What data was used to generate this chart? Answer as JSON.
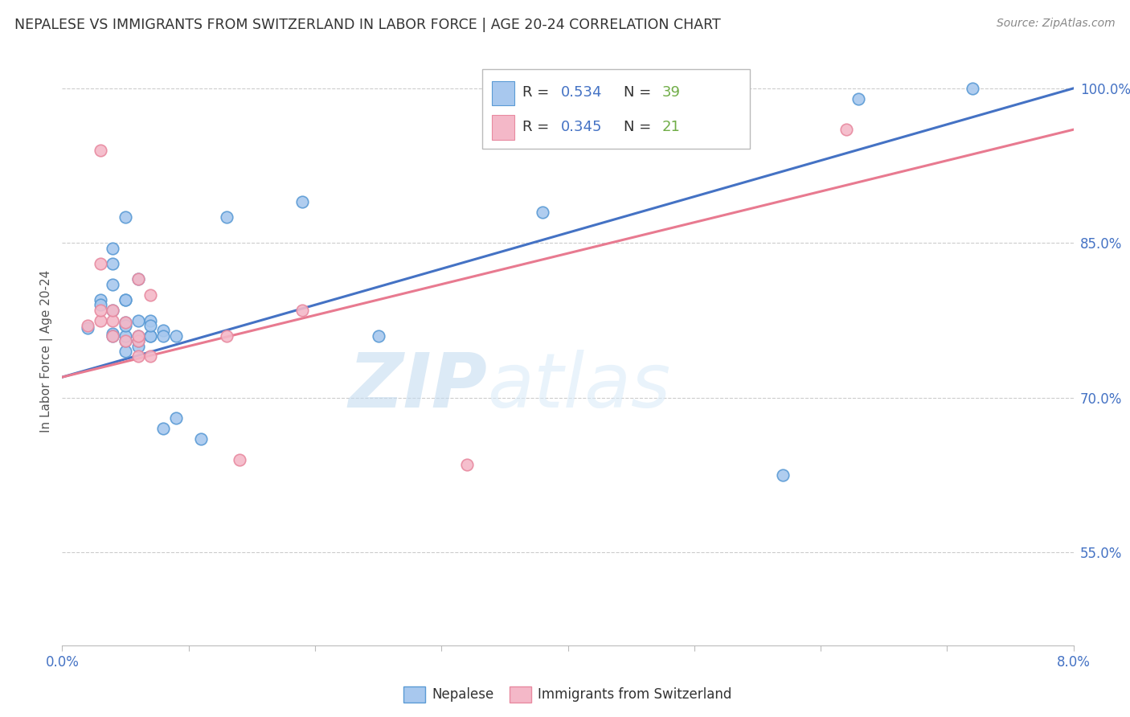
{
  "title": "NEPALESE VS IMMIGRANTS FROM SWITZERLAND IN LABOR FORCE | AGE 20-24 CORRELATION CHART",
  "source": "Source: ZipAtlas.com",
  "ylabel": "In Labor Force | Age 20-24",
  "ytick_labels": [
    "55.0%",
    "70.0%",
    "85.0%",
    "100.0%"
  ],
  "ytick_values": [
    0.55,
    0.7,
    0.85,
    1.0
  ],
  "xlim": [
    0.0,
    0.08
  ],
  "ylim": [
    0.46,
    1.03
  ],
  "watermark_zip": "ZIP",
  "watermark_atlas": "atlas",
  "legend_r1": "R = 0.534",
  "legend_n1": "N = 39",
  "legend_r2": "R = 0.345",
  "legend_n2": "N = 21",
  "legend_label1": "Nepalese",
  "legend_label2": "Immigrants from Switzerland",
  "blue_fill": "#A8C8EE",
  "pink_fill": "#F4B8C8",
  "blue_edge": "#5B9BD5",
  "pink_edge": "#E88AA0",
  "blue_line": "#4472C4",
  "pink_line": "#E87A90",
  "text_blue": "#4472C4",
  "text_green": "#70AD47",
  "grid_color": "#CCCCCC",
  "bg": "#FFFFFF",
  "nepalese_x": [
    0.002,
    0.003,
    0.003,
    0.004,
    0.004,
    0.004,
    0.004,
    0.004,
    0.004,
    0.005,
    0.005,
    0.005,
    0.005,
    0.005,
    0.005,
    0.005,
    0.005,
    0.006,
    0.006,
    0.006,
    0.006,
    0.006,
    0.007,
    0.007,
    0.007,
    0.007,
    0.008,
    0.008,
    0.008,
    0.009,
    0.009,
    0.011,
    0.013,
    0.019,
    0.025,
    0.038,
    0.057,
    0.063,
    0.072
  ],
  "nepalese_y": [
    0.768,
    0.795,
    0.79,
    0.762,
    0.76,
    0.81,
    0.785,
    0.83,
    0.845,
    0.745,
    0.755,
    0.76,
    0.773,
    0.77,
    0.795,
    0.875,
    0.795,
    0.75,
    0.755,
    0.76,
    0.775,
    0.815,
    0.76,
    0.76,
    0.775,
    0.77,
    0.67,
    0.765,
    0.76,
    0.68,
    0.76,
    0.66,
    0.875,
    0.89,
    0.76,
    0.88,
    0.625,
    0.99,
    1.0
  ],
  "swiss_x": [
    0.002,
    0.003,
    0.003,
    0.003,
    0.003,
    0.004,
    0.004,
    0.004,
    0.005,
    0.005,
    0.006,
    0.006,
    0.006,
    0.006,
    0.007,
    0.007,
    0.013,
    0.014,
    0.019,
    0.032,
    0.062
  ],
  "swiss_y": [
    0.77,
    0.775,
    0.785,
    0.83,
    0.94,
    0.76,
    0.775,
    0.785,
    0.755,
    0.773,
    0.74,
    0.755,
    0.76,
    0.815,
    0.74,
    0.8,
    0.76,
    0.64,
    0.785,
    0.635,
    0.96
  ],
  "blue_trend_x": [
    0.0,
    0.08
  ],
  "blue_trend_y": [
    0.72,
    1.0
  ],
  "pink_trend_x": [
    0.0,
    0.08
  ],
  "pink_trend_y": [
    0.72,
    0.96
  ]
}
